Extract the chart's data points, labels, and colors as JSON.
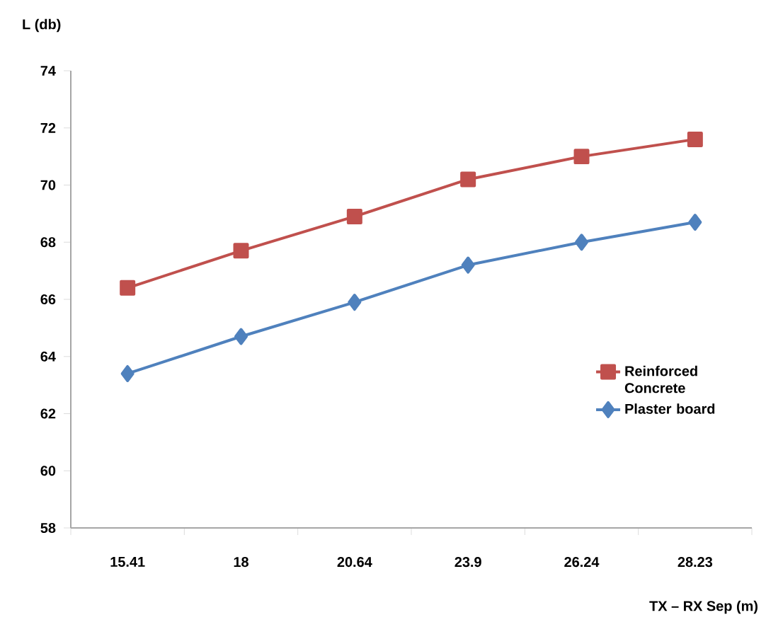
{
  "chart_data": {
    "type": "line",
    "xlabel": "TX – RX Sep (m)",
    "ylabel": "L (db)",
    "categories": [
      "15.41",
      "18",
      "20.64",
      "23.9",
      "26.24",
      "28.23"
    ],
    "series": [
      {
        "name": "Reinforced Concrete",
        "color": "#c0504d",
        "marker": "square",
        "values": [
          66.4,
          67.7,
          68.9,
          70.2,
          71.0,
          71.6
        ]
      },
      {
        "name": "Plaster board",
        "color": "#4f81bd",
        "marker": "diamond",
        "values": [
          63.4,
          64.7,
          65.9,
          67.2,
          68.0,
          68.7
        ]
      }
    ],
    "ylim": [
      58,
      74
    ],
    "yticks": [
      58,
      60,
      62,
      64,
      66,
      68,
      70,
      72,
      74
    ],
    "grid": false,
    "legend": "right"
  }
}
